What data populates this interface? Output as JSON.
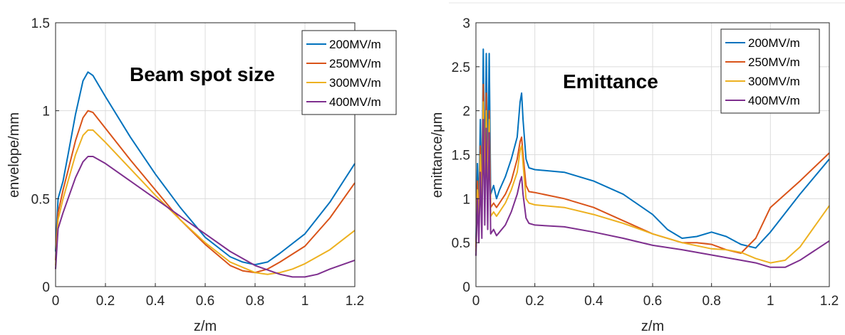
{
  "colors": {
    "s200": "#0072bd",
    "s250": "#d95319",
    "s300": "#edb120",
    "s400": "#7e2f8e"
  },
  "chart_data": [
    {
      "type": "line",
      "annotation": "Beam spot size",
      "xlabel": "z/m",
      "ylabel": "envelope/mm",
      "xlim": [
        0,
        1.2
      ],
      "ylim": [
        0,
        1.5
      ],
      "xticks": [
        "0",
        "0.2",
        "0.4",
        "0.6",
        "0.8",
        "1",
        "1.2"
      ],
      "xtick_values": [
        0,
        0.2,
        0.4,
        0.6,
        0.8,
        1.0,
        1.2
      ],
      "yticks": [
        "0",
        "0.5",
        "1",
        "1.5"
      ],
      "ytick_values": [
        0,
        0.5,
        1.0,
        1.5
      ],
      "grid": true,
      "legend_position": "top-right",
      "series": [
        {
          "name": "200MV/m",
          "color": "#0072bd",
          "x": [
            0,
            0.01,
            0.03,
            0.05,
            0.08,
            0.11,
            0.13,
            0.15,
            0.2,
            0.3,
            0.4,
            0.5,
            0.6,
            0.7,
            0.75,
            0.8,
            0.85,
            0.9,
            1.0,
            1.1,
            1.2
          ],
          "y": [
            0.2,
            0.5,
            0.6,
            0.75,
            0.98,
            1.17,
            1.22,
            1.2,
            1.08,
            0.85,
            0.64,
            0.45,
            0.28,
            0.17,
            0.14,
            0.125,
            0.14,
            0.19,
            0.3,
            0.48,
            0.7
          ]
        },
        {
          "name": "250MV/m",
          "color": "#d95319",
          "x": [
            0,
            0.01,
            0.03,
            0.05,
            0.08,
            0.11,
            0.13,
            0.15,
            0.2,
            0.3,
            0.4,
            0.5,
            0.6,
            0.7,
            0.75,
            0.8,
            0.85,
            0.9,
            1.0,
            1.1,
            1.2
          ],
          "y": [
            0.15,
            0.42,
            0.55,
            0.66,
            0.83,
            0.96,
            1.0,
            0.99,
            0.9,
            0.72,
            0.55,
            0.38,
            0.24,
            0.12,
            0.09,
            0.08,
            0.1,
            0.14,
            0.23,
            0.39,
            0.59
          ]
        },
        {
          "name": "300MV/m",
          "color": "#edb120",
          "x": [
            0,
            0.01,
            0.03,
            0.05,
            0.08,
            0.11,
            0.13,
            0.15,
            0.2,
            0.3,
            0.4,
            0.5,
            0.6,
            0.7,
            0.8,
            0.85,
            0.9,
            0.95,
            1.0,
            1.1,
            1.2
          ],
          "y": [
            0.12,
            0.38,
            0.5,
            0.6,
            0.75,
            0.86,
            0.89,
            0.89,
            0.82,
            0.67,
            0.52,
            0.38,
            0.25,
            0.14,
            0.08,
            0.07,
            0.08,
            0.1,
            0.13,
            0.21,
            0.32
          ]
        },
        {
          "name": "400MV/m",
          "color": "#7e2f8e",
          "x": [
            0,
            0.01,
            0.03,
            0.05,
            0.08,
            0.11,
            0.13,
            0.15,
            0.2,
            0.3,
            0.4,
            0.5,
            0.6,
            0.7,
            0.8,
            0.9,
            0.95,
            1.0,
            1.05,
            1.1,
            1.2
          ],
          "y": [
            0.1,
            0.33,
            0.42,
            0.5,
            0.62,
            0.71,
            0.74,
            0.74,
            0.7,
            0.6,
            0.5,
            0.4,
            0.3,
            0.2,
            0.12,
            0.07,
            0.055,
            0.055,
            0.07,
            0.1,
            0.15
          ]
        }
      ]
    },
    {
      "type": "line",
      "annotation": "Emittance",
      "xlabel": "z/m",
      "ylabel": "emittance/μm",
      "xlim": [
        0,
        1.2
      ],
      "ylim": [
        0,
        3
      ],
      "xticks": [
        "0",
        "0.2",
        "0.4",
        "0.6",
        "0.8",
        "1",
        "1.2"
      ],
      "xtick_values": [
        0,
        0.2,
        0.4,
        0.6,
        0.8,
        1.0,
        1.2
      ],
      "yticks": [
        "0",
        "0.5",
        "1",
        "1.5",
        "2",
        "2.5",
        "3"
      ],
      "ytick_values": [
        0,
        0.5,
        1.0,
        1.5,
        2.0,
        2.5,
        3.0
      ],
      "grid": true,
      "legend_position": "top-right",
      "series": [
        {
          "name": "200MV/m",
          "color": "#0072bd",
          "x": [
            0,
            0.005,
            0.01,
            0.015,
            0.02,
            0.025,
            0.03,
            0.035,
            0.04,
            0.045,
            0.05,
            0.06,
            0.07,
            0.08,
            0.1,
            0.12,
            0.14,
            0.15,
            0.155,
            0.16,
            0.17,
            0.18,
            0.2,
            0.3,
            0.4,
            0.5,
            0.6,
            0.65,
            0.7,
            0.75,
            0.8,
            0.85,
            0.9,
            0.95,
            1.0,
            1.1,
            1.2
          ],
          "y": [
            0.5,
            1.4,
            0.9,
            1.9,
            1.0,
            2.7,
            1.2,
            2.65,
            1.3,
            2.65,
            1.05,
            1.15,
            1.0,
            1.1,
            1.25,
            1.45,
            1.7,
            2.1,
            2.2,
            1.9,
            1.45,
            1.35,
            1.33,
            1.3,
            1.2,
            1.05,
            0.82,
            0.65,
            0.55,
            0.57,
            0.62,
            0.57,
            0.48,
            0.44,
            0.62,
            1.05,
            1.45
          ]
        },
        {
          "name": "250MV/m",
          "color": "#d95319",
          "x": [
            0,
            0.005,
            0.01,
            0.015,
            0.02,
            0.025,
            0.03,
            0.035,
            0.04,
            0.045,
            0.05,
            0.06,
            0.07,
            0.08,
            0.1,
            0.12,
            0.14,
            0.15,
            0.155,
            0.16,
            0.17,
            0.18,
            0.2,
            0.3,
            0.4,
            0.5,
            0.6,
            0.7,
            0.75,
            0.8,
            0.85,
            0.9,
            0.95,
            1.0,
            1.1,
            1.2
          ],
          "y": [
            0.45,
            1.2,
            0.75,
            1.6,
            0.8,
            2.3,
            1.0,
            2.2,
            1.0,
            2.0,
            0.9,
            0.95,
            0.9,
            0.95,
            1.05,
            1.2,
            1.45,
            1.65,
            1.7,
            1.5,
            1.15,
            1.08,
            1.07,
            1.0,
            0.9,
            0.75,
            0.6,
            0.5,
            0.5,
            0.48,
            0.42,
            0.38,
            0.55,
            0.9,
            1.2,
            1.52
          ]
        },
        {
          "name": "300MV/m",
          "color": "#edb120",
          "x": [
            0,
            0.005,
            0.01,
            0.015,
            0.02,
            0.025,
            0.03,
            0.035,
            0.04,
            0.045,
            0.05,
            0.06,
            0.07,
            0.08,
            0.1,
            0.12,
            0.14,
            0.15,
            0.155,
            0.16,
            0.17,
            0.18,
            0.2,
            0.3,
            0.4,
            0.5,
            0.6,
            0.7,
            0.8,
            0.85,
            0.9,
            0.95,
            1.0,
            1.05,
            1.1,
            1.2
          ],
          "y": [
            0.4,
            1.1,
            0.7,
            1.5,
            0.75,
            2.1,
            0.9,
            2.0,
            0.95,
            1.9,
            0.8,
            0.85,
            0.8,
            0.85,
            0.95,
            1.1,
            1.3,
            1.55,
            1.6,
            1.4,
            1.0,
            0.95,
            0.93,
            0.9,
            0.82,
            0.72,
            0.6,
            0.5,
            0.43,
            0.42,
            0.39,
            0.32,
            0.27,
            0.3,
            0.45,
            0.92
          ]
        },
        {
          "name": "400MV/m",
          "color": "#7e2f8e",
          "x": [
            0,
            0.005,
            0.01,
            0.015,
            0.02,
            0.025,
            0.03,
            0.035,
            0.04,
            0.045,
            0.05,
            0.06,
            0.07,
            0.08,
            0.1,
            0.12,
            0.14,
            0.15,
            0.155,
            0.16,
            0.17,
            0.18,
            0.2,
            0.3,
            0.4,
            0.5,
            0.6,
            0.7,
            0.8,
            0.9,
            0.95,
            1.0,
            1.05,
            1.1,
            1.2
          ],
          "y": [
            0.35,
            1.0,
            0.5,
            1.3,
            0.55,
            1.9,
            0.7,
            1.8,
            0.65,
            1.75,
            0.6,
            0.65,
            0.58,
            0.62,
            0.7,
            0.85,
            1.05,
            1.2,
            1.25,
            1.05,
            0.78,
            0.72,
            0.7,
            0.68,
            0.62,
            0.55,
            0.47,
            0.42,
            0.36,
            0.3,
            0.27,
            0.22,
            0.22,
            0.3,
            0.52
          ]
        }
      ]
    }
  ]
}
